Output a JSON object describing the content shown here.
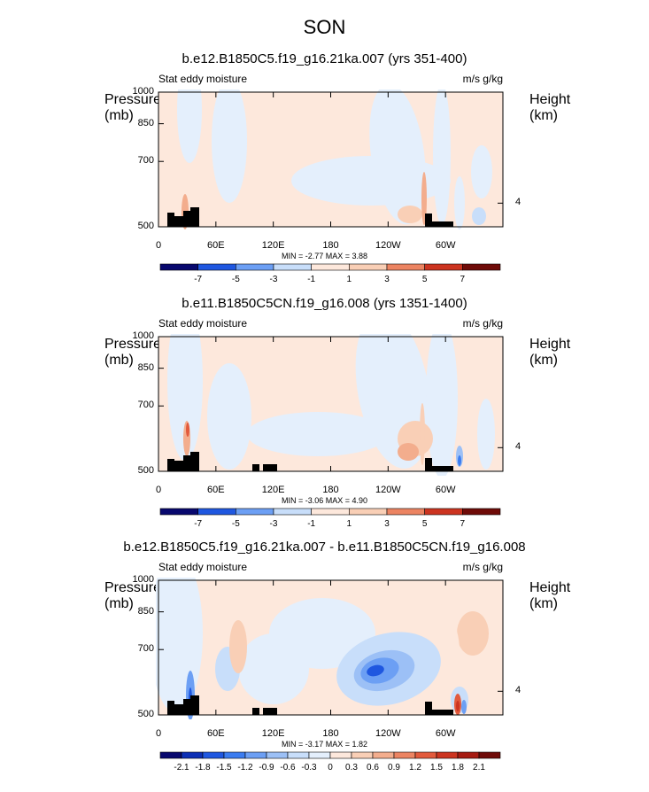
{
  "title": "SON",
  "chart_data": [
    {
      "type": "heatmap",
      "title": "b.e12.B1850C5.f19_g16.21ka.007 (yrs 351-400)",
      "left_label": "Stat eddy moisture",
      "units": "m/s g/kg",
      "ylabel": "Pressure (mb)",
      "y2label": "Height (km)",
      "yticks": [
        "500",
        "700",
        "850",
        "1000"
      ],
      "y2ticks": [
        "4"
      ],
      "xticks": [
        "0",
        "60E",
        "120E",
        "180",
        "120W",
        "60W"
      ],
      "min_max": "MIN = -2.77   MAX = 3.88",
      "levels": [
        "-7",
        "-5",
        "-3",
        "-1",
        "1",
        "3",
        "5",
        "7"
      ],
      "level_values": [
        -7,
        -5,
        -3,
        -1,
        1,
        3,
        5,
        7
      ],
      "palette": [
        "#08086e",
        "#0c2fb5",
        "#1f57e0",
        "#3b7cf0",
        "#6c9ff4",
        "#9cc0f6",
        "#c8defa",
        "#e4effc",
        "#fde8dc",
        "#f9cfb6",
        "#f3ad8d",
        "#ec8462",
        "#e25a3c",
        "#cc3420",
        "#a61b12",
        "#6f0b08"
      ],
      "ylim": [
        1000,
        500
      ],
      "xlim": [
        0,
        360
      ]
    },
    {
      "type": "heatmap",
      "title": "b.e11.B1850C5CN.f19_g16.008 (yrs 1351-1400)",
      "left_label": "Stat eddy moisture",
      "units": "m/s g/kg",
      "ylabel": "Pressure (mb)",
      "y2label": "Height (km)",
      "yticks": [
        "500",
        "700",
        "850",
        "1000"
      ],
      "y2ticks": [
        "4"
      ],
      "xticks": [
        "0",
        "60E",
        "120E",
        "180",
        "120W",
        "60W"
      ],
      "min_max": "MIN = -3.06   MAX = 4.90",
      "levels": [
        "-7",
        "-5",
        "-3",
        "-1",
        "1",
        "3",
        "5",
        "7"
      ],
      "level_values": [
        -7,
        -5,
        -3,
        -1,
        1,
        3,
        5,
        7
      ],
      "palette": [
        "#08086e",
        "#0c2fb5",
        "#1f57e0",
        "#3b7cf0",
        "#6c9ff4",
        "#9cc0f6",
        "#c8defa",
        "#e4effc",
        "#fde8dc",
        "#f9cfb6",
        "#f3ad8d",
        "#ec8462",
        "#e25a3c",
        "#cc3420",
        "#a61b12",
        "#6f0b08"
      ],
      "ylim": [
        1000,
        500
      ],
      "xlim": [
        0,
        360
      ]
    },
    {
      "type": "heatmap",
      "title": "b.e12.B1850C5.f19_g16.21ka.007 - b.e11.B1850C5CN.f19_g16.008",
      "left_label": "Stat eddy moisture",
      "units": "m/s g/kg",
      "ylabel": "Pressure (mb)",
      "y2label": "Height (km)",
      "yticks": [
        "500",
        "700",
        "850",
        "1000"
      ],
      "y2ticks": [
        "4"
      ],
      "xticks": [
        "0",
        "60E",
        "120E",
        "180",
        "120W",
        "60W"
      ],
      "min_max": "MIN = -3.17   MAX = 1.82",
      "levels": [
        "-2.1",
        "-1.8",
        "-1.5",
        "-1.2",
        "-0.9",
        "-0.6",
        "-0.3",
        "0",
        "0.3",
        "0.6",
        "0.9",
        "1.2",
        "1.5",
        "1.8",
        "2.1"
      ],
      "level_values": [
        -2.1,
        -1.8,
        -1.5,
        -1.2,
        -0.9,
        -0.6,
        -0.3,
        0,
        0.3,
        0.6,
        0.9,
        1.2,
        1.5,
        1.8,
        2.1
      ],
      "palette": [
        "#08086e",
        "#0c2fb5",
        "#1f57e0",
        "#3b7cf0",
        "#6c9ff4",
        "#9cc0f6",
        "#c8defa",
        "#e4effc",
        "#fde8dc",
        "#f9cfb6",
        "#f3ad8d",
        "#ec8462",
        "#e25a3c",
        "#cc3420",
        "#a61b12",
        "#6f0b08"
      ],
      "ylim": [
        1000,
        500
      ],
      "xlim": [
        0,
        360
      ]
    }
  ]
}
